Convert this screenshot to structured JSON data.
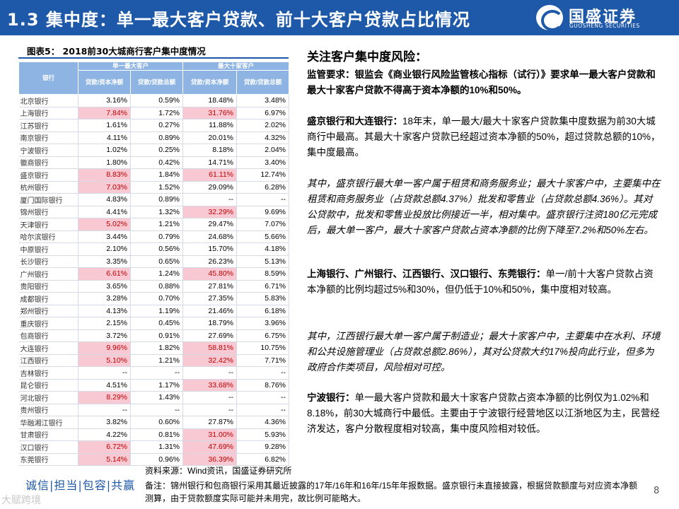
{
  "header": {
    "title": "1.3 集中度：单一最大客户贷款、前十大客户贷款占比情况",
    "logo_name": "国盛证券",
    "logo_en": "GUOSHENG SECURITIES",
    "logo_icon": "guosheng-logo-icon",
    "accent_color": "#1e58a8"
  },
  "figure": {
    "caption": "图表5： 2018前30大城商行客户集中度情况"
  },
  "table": {
    "header_bank": "银行",
    "group_single": "单一最大客户",
    "group_top10": "最大十家客户",
    "sub_cols": [
      "贷款/资本净额",
      "贷款/贷款总额",
      "贷款/资本净额",
      "贷款/贷款总额"
    ],
    "highlight_color": "#f8c9d2",
    "rows": [
      {
        "bank": "北京银行",
        "a": "3.16%",
        "b": "0.59%",
        "c": "18.48%",
        "d": "3.48%"
      },
      {
        "bank": "上海银行",
        "a": "7.84%",
        "b": "1.72%",
        "c": "31.76%",
        "d": "6.97%"
      },
      {
        "bank": "江苏银行",
        "a": "1.61%",
        "b": "0.27%",
        "c": "11.88%",
        "d": "2.02%"
      },
      {
        "bank": "南京银行",
        "a": "4.11%",
        "b": "0.89%",
        "c": "20.01%",
        "d": "4.32%"
      },
      {
        "bank": "宁波银行",
        "a": "1.02%",
        "b": "0.25%",
        "c": "8.18%",
        "d": "2.04%"
      },
      {
        "bank": "徽商银行",
        "a": "1.80%",
        "b": "0.42%",
        "c": "14.71%",
        "d": "3.40%"
      },
      {
        "bank": "盛京银行",
        "a": "8.83%",
        "b": "1.84%",
        "c": "61.11%",
        "d": "12.74%"
      },
      {
        "bank": "杭州银行",
        "a": "7.03%",
        "b": "1.52%",
        "c": "29.09%",
        "d": "6.28%"
      },
      {
        "bank": "厦门国际银行",
        "a": "4.83%",
        "b": "0.89%",
        "c": "--",
        "d": "--"
      },
      {
        "bank": "锦州银行",
        "a": "4.41%",
        "b": "1.32%",
        "c": "32.29%",
        "d": "9.69%"
      },
      {
        "bank": "天津银行",
        "a": "5.02%",
        "b": "1.21%",
        "c": "29.47%",
        "d": "7.07%"
      },
      {
        "bank": "哈尔滨银行",
        "a": "3.44%",
        "b": "0.79%",
        "c": "24.68%",
        "d": "5.66%"
      },
      {
        "bank": "中原银行",
        "a": "2.10%",
        "b": "0.56%",
        "c": "15.70%",
        "d": "4.18%"
      },
      {
        "bank": "长沙银行",
        "a": "3.35%",
        "b": "0.65%",
        "c": "26.23%",
        "d": "5.13%"
      },
      {
        "bank": "广州银行",
        "a": "6.61%",
        "b": "1.24%",
        "c": "45.80%",
        "d": "8.59%"
      },
      {
        "bank": "贵阳银行",
        "a": "3.65%",
        "b": "0.88%",
        "c": "27.81%",
        "d": "6.71%"
      },
      {
        "bank": "成都银行",
        "a": "3.28%",
        "b": "0.70%",
        "c": "27.35%",
        "d": "5.83%"
      },
      {
        "bank": "郑州银行",
        "a": "4.13%",
        "b": "1.19%",
        "c": "21.46%",
        "d": "6.18%"
      },
      {
        "bank": "重庆银行",
        "a": "2.15%",
        "b": "0.45%",
        "c": "18.79%",
        "d": "3.96%"
      },
      {
        "bank": "包商银行",
        "a": "3.72%",
        "b": "0.91%",
        "c": "27.69%",
        "d": "6.75%"
      },
      {
        "bank": "大连银行",
        "a": "9.96%",
        "b": "1.82%",
        "c": "58.81%",
        "d": "10.75%"
      },
      {
        "bank": "江西银行",
        "a": "5.10%",
        "b": "1.21%",
        "c": "32.42%",
        "d": "7.71%"
      },
      {
        "bank": "吉林银行",
        "a": "--",
        "b": "--",
        "c": "--",
        "d": "--"
      },
      {
        "bank": "昆仑银行",
        "a": "4.51%",
        "b": "1.17%",
        "c": "33.68%",
        "d": "8.76%"
      },
      {
        "bank": "河北银行",
        "a": "8.29%",
        "b": "1.43%",
        "c": "--",
        "d": "--"
      },
      {
        "bank": "贵州银行",
        "a": "--",
        "b": "--",
        "c": "--",
        "d": "--"
      },
      {
        "bank": "华融湘江银行",
        "a": "3.82%",
        "b": "0.60%",
        "c": "27.87%",
        "d": "4.36%"
      },
      {
        "bank": "甘肃银行",
        "a": "4.22%",
        "b": "0.81%",
        "c": "31.00%",
        "d": "5.93%"
      },
      {
        "bank": "汉口银行",
        "a": "6.72%",
        "b": "1.31%",
        "c": "47.69%",
        "d": "9.28%"
      },
      {
        "bank": "东莞银行",
        "a": "5.14%",
        "b": "0.96%",
        "c": "36.39%",
        "d": "6.82%"
      }
    ]
  },
  "right": {
    "title": "关注客户集中度风险：",
    "p1": "监管要求：银监会《商业银行风险监管核心指标（试行）》要求单一最大客户贷款和最大十家客户贷款不得高于资本净额的10%和50%。",
    "p2_lead": "盛京银行和大连银行：",
    "p2_body": "18年末，单一最大/最大十家客户贷款集中度数据为前30大城商行中最高。其最大十家客户贷款已经超过资本净额的50%，超过贷款总额的10%，集中度最高。",
    "p3": "其中，盛京银行最大单一客户属于租赁和商务服务业；最大十家客户中，主要集中在租赁和商务服务业（占贷款总额4.37%）批发和零售业（占贷款总额4.36%）。其对公贷款中，批发和零售业投放比例接近一半，相对集中。盛京银行注资180亿元完成后，最大单一客户，最大十家客户贷款占资本净额的比例下降至7.2%和50%左右。",
    "p4_lead": "上海银行、广州银行、江西银行、汉口银行、东莞银行：",
    "p4_body": "单一/前十大客户贷款占资本净额的比例均超过5%和30%，但仍低于10%和50%，集中度相对较高。",
    "p5": "其中，江西银行最大单一客户属于制造业；最大十家客户中，主要集中在水利、环境和公共设施管理业（占贷款总额2.86%），其对公贷款大约17%投向此行业，但多为政府合作类项目，风险相对可控。",
    "p6_lead": "宁波银行：",
    "p6_body": "单一最大客户贷款和最大十家客户贷款占资本净额的比例仅为1.02%和8.18%，前30大城商行中最低。主要由于宁波银行经营地区以江浙地区为主，民营经济发达，客户分散程度相对较高，集中度风险相对较低。"
  },
  "footer": {
    "source": "资料来源：Wind资讯，国盛证券研究所",
    "note": "备注：锦州银行和包商银行采用其最近披露的17年/16年和16年/15年年报数据。盛京银行未直接披露，根据贷款额度与对应资本净额测算，由于贷款额度实际可能并未用完，故比例可能略大。",
    "slogan": "诚信|担当|包容|共赢",
    "watermark": "大赋跨境",
    "page": "8"
  }
}
